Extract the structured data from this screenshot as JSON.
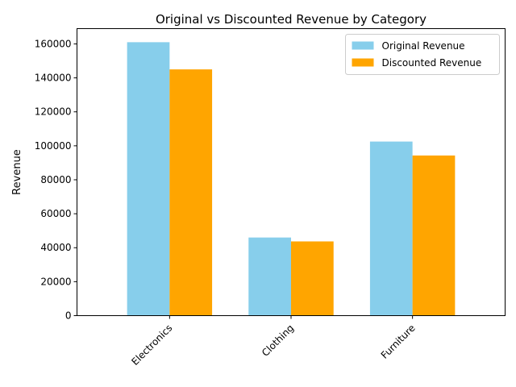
{
  "chart_data": {
    "type": "bar",
    "title": "Original vs Discounted Revenue by Category",
    "xlabel": "",
    "ylabel": "Revenue",
    "categories": [
      "Electronics",
      "Clothing",
      "Furniture"
    ],
    "series": [
      {
        "name": "Original Revenue",
        "color": "#87ceeb",
        "values": [
          161000,
          46000,
          102500
        ]
      },
      {
        "name": "Discounted Revenue",
        "color": "#ffa500",
        "values": [
          145000,
          43700,
          94300
        ]
      }
    ],
    "ylim": [
      0,
      169000
    ],
    "yticks": [
      0,
      20000,
      40000,
      60000,
      80000,
      100000,
      120000,
      140000,
      160000
    ],
    "grid": false,
    "legend_position": "top-right"
  }
}
